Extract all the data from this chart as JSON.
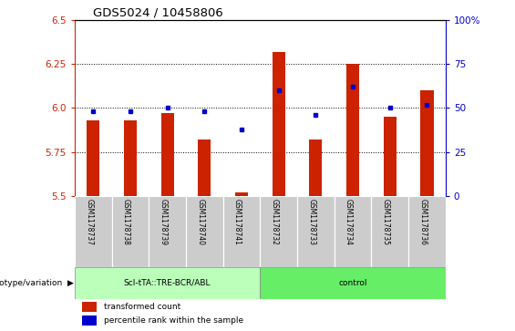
{
  "title": "GDS5024 / 10458806",
  "samples": [
    "GSM1178737",
    "GSM1178738",
    "GSM1178739",
    "GSM1178740",
    "GSM1178741",
    "GSM1178732",
    "GSM1178733",
    "GSM1178734",
    "GSM1178735",
    "GSM1178736"
  ],
  "bar_values": [
    5.93,
    5.93,
    5.97,
    5.82,
    5.52,
    6.32,
    5.82,
    6.25,
    5.95,
    6.1
  ],
  "dot_values": [
    48,
    48,
    50,
    48,
    38,
    60,
    46,
    62,
    50,
    52
  ],
  "ylim": [
    5.5,
    6.5
  ],
  "yticks": [
    5.5,
    5.75,
    6.0,
    6.25,
    6.5
  ],
  "right_ylim": [
    0,
    100
  ],
  "right_yticks": [
    0,
    25,
    50,
    75,
    100
  ],
  "right_yticklabels": [
    "0",
    "25",
    "50",
    "75",
    "100%"
  ],
  "bar_color": "#cc2200",
  "dot_color": "#0000cc",
  "group1_label": "Scl-tTA::TRE-BCR/ABL",
  "group2_label": "control",
  "group1_color": "#bbffbb",
  "group2_color": "#66ee66",
  "group1_indices": [
    0,
    1,
    2,
    3,
    4
  ],
  "group2_indices": [
    5,
    6,
    7,
    8,
    9
  ],
  "grid_color": "black",
  "ylabel_left_color": "#cc2200",
  "ylabel_right_color": "#0000cc",
  "bar_width": 0.35,
  "tick_cell_color": "#cccccc",
  "genotype_label": "genotype/variation",
  "legend_tc": "transformed count",
  "legend_pr": "percentile rank within the sample"
}
